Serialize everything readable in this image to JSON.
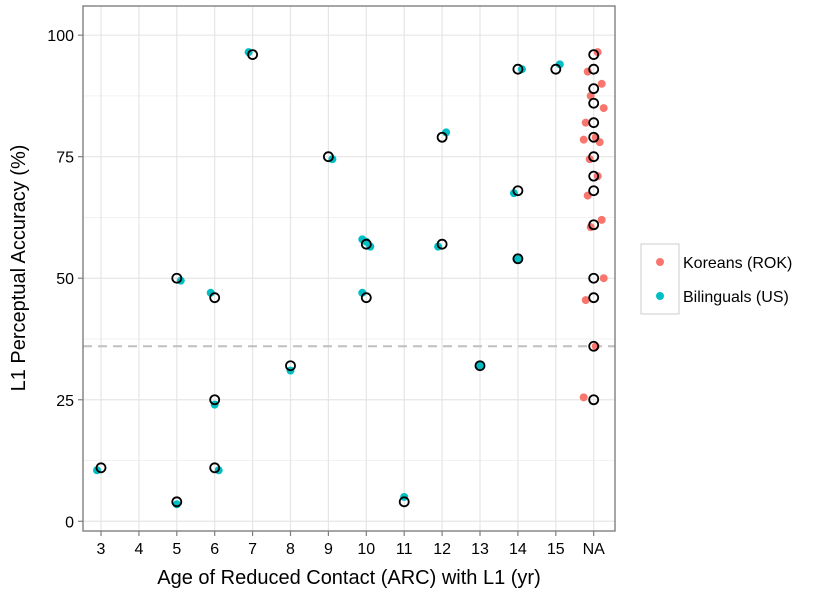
{
  "chart_data": {
    "type": "scatter",
    "xlabel": "Age of Reduced Contact (ARC) with L1 (yr)",
    "ylabel": "L1 Perceptual Accuracy (%)",
    "x_categories": [
      "3",
      "4",
      "5",
      "6",
      "7",
      "8",
      "9",
      "10",
      "11",
      "12",
      "13",
      "14",
      "15",
      "NA"
    ],
    "ylim": [
      -2,
      106
    ],
    "yticks": [
      0,
      25,
      50,
      75,
      100
    ],
    "grid": true,
    "reference_line": {
      "y": 36,
      "style": "dashed",
      "color": "#bfbfbf"
    },
    "legend": {
      "position": "right",
      "entries": [
        {
          "label": "Koreans (ROK)",
          "color": "#F8766D"
        },
        {
          "label": "Bilinguals (US)",
          "color": "#00BFC4"
        }
      ]
    },
    "series": [
      {
        "name": "Koreans (ROK)",
        "color": "#F8766D",
        "marker": "filled-circle",
        "points": [
          {
            "x": "NA",
            "y": 96.5
          },
          {
            "x": "NA",
            "y": 92.5
          },
          {
            "x": "NA",
            "y": 90
          },
          {
            "x": "NA",
            "y": 87.5
          },
          {
            "x": "NA",
            "y": 85
          },
          {
            "x": "NA",
            "y": 82
          },
          {
            "x": "NA",
            "y": 79
          },
          {
            "x": "NA",
            "y": 78.5
          },
          {
            "x": "NA",
            "y": 78
          },
          {
            "x": "NA",
            "y": 74.5
          },
          {
            "x": "NA",
            "y": 71
          },
          {
            "x": "NA",
            "y": 67
          },
          {
            "x": "NA",
            "y": 62
          },
          {
            "x": "NA",
            "y": 60.5
          },
          {
            "x": "NA",
            "y": 50
          },
          {
            "x": "NA",
            "y": 45.5
          },
          {
            "x": "NA",
            "y": 36
          },
          {
            "x": "NA",
            "y": 25.5
          }
        ]
      },
      {
        "name": "Bilinguals (US)",
        "color": "#00BFC4",
        "marker": "filled-circle",
        "points": [
          {
            "x": "3",
            "y": 10.5
          },
          {
            "x": "5",
            "y": 3.5
          },
          {
            "x": "5",
            "y": 49.5
          },
          {
            "x": "6",
            "y": 47
          },
          {
            "x": "6",
            "y": 24
          },
          {
            "x": "6",
            "y": 10.5
          },
          {
            "x": "7",
            "y": 96.5
          },
          {
            "x": "8",
            "y": 31
          },
          {
            "x": "9",
            "y": 74.5
          },
          {
            "x": "10",
            "y": 58
          },
          {
            "x": "10",
            "y": 57.5
          },
          {
            "x": "10",
            "y": 56.5
          },
          {
            "x": "10",
            "y": 47
          },
          {
            "x": "11",
            "y": 5
          },
          {
            "x": "12",
            "y": 80
          },
          {
            "x": "12",
            "y": 56.5
          },
          {
            "x": "13",
            "y": 32
          },
          {
            "x": "14",
            "y": 93
          },
          {
            "x": "14",
            "y": 67.5
          },
          {
            "x": "14",
            "y": 54
          },
          {
            "x": "15",
            "y": 94
          }
        ]
      },
      {
        "name": "",
        "color": "#000000",
        "marker": "open-circle",
        "points": [
          {
            "x": "3",
            "y": 11
          },
          {
            "x": "5",
            "y": 50
          },
          {
            "x": "5",
            "y": 4
          },
          {
            "x": "6",
            "y": 46
          },
          {
            "x": "6",
            "y": 25
          },
          {
            "x": "6",
            "y": 11
          },
          {
            "x": "7",
            "y": 96
          },
          {
            "x": "8",
            "y": 32
          },
          {
            "x": "9",
            "y": 75
          },
          {
            "x": "10",
            "y": 57
          },
          {
            "x": "10",
            "y": 46
          },
          {
            "x": "11",
            "y": 4
          },
          {
            "x": "12",
            "y": 79
          },
          {
            "x": "12",
            "y": 57
          },
          {
            "x": "13",
            "y": 32
          },
          {
            "x": "14",
            "y": 93
          },
          {
            "x": "14",
            "y": 68
          },
          {
            "x": "14",
            "y": 54
          },
          {
            "x": "15",
            "y": 93
          },
          {
            "x": "NA",
            "y": 96
          },
          {
            "x": "NA",
            "y": 93
          },
          {
            "x": "NA",
            "y": 89
          },
          {
            "x": "NA",
            "y": 86
          },
          {
            "x": "NA",
            "y": 82
          },
          {
            "x": "NA",
            "y": 79
          },
          {
            "x": "NA",
            "y": 75
          },
          {
            "x": "NA",
            "y": 71
          },
          {
            "x": "NA",
            "y": 68
          },
          {
            "x": "NA",
            "y": 61
          },
          {
            "x": "NA",
            "y": 50
          },
          {
            "x": "NA",
            "y": 46
          },
          {
            "x": "NA",
            "y": 36
          },
          {
            "x": "NA",
            "y": 25
          }
        ]
      }
    ]
  }
}
